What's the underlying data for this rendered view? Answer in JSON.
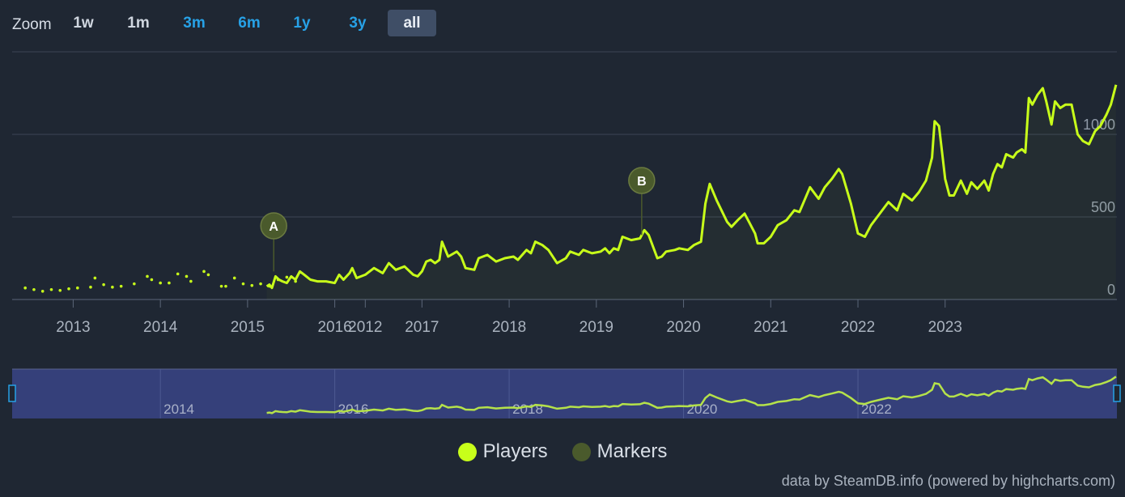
{
  "zoom": {
    "label": "Zoom",
    "buttons": [
      "1w",
      "1m",
      "3m",
      "6m",
      "1y",
      "3y",
      "all"
    ],
    "active": "all"
  },
  "legend": [
    {
      "label": "Players",
      "color": "#c8ff1a"
    },
    {
      "label": "Markers",
      "color": "#4a5a2c"
    }
  ],
  "credits": "data by SteamDB.info (powered by highcharts.com)",
  "chart_data": {
    "type": "line",
    "ylim": [
      0,
      1500
    ],
    "yticks": [
      0,
      500,
      1000
    ],
    "xtick_labels": [
      "2013",
      "2014",
      "2015",
      "2016",
      "2012",
      "2017",
      "2018",
      "2019",
      "2020",
      "2021",
      "2022",
      "2023"
    ],
    "navigator_labels": [
      "2014",
      "2016",
      "2018",
      "2020",
      "2022"
    ],
    "series": [
      {
        "name": "Players",
        "color": "#c8ff1a",
        "sparse": [
          [
            2012.45,
            70
          ],
          [
            2012.55,
            60
          ],
          [
            2012.65,
            50
          ],
          [
            2012.75,
            60
          ],
          [
            2012.85,
            55
          ],
          [
            2012.95,
            65
          ],
          [
            2013.05,
            70
          ],
          [
            2013.2,
            75
          ],
          [
            2013.25,
            130
          ],
          [
            2013.35,
            90
          ],
          [
            2013.45,
            75
          ],
          [
            2013.55,
            80
          ],
          [
            2013.7,
            95
          ],
          [
            2013.85,
            140
          ],
          [
            2013.9,
            120
          ],
          [
            2014.0,
            100
          ],
          [
            2014.1,
            100
          ],
          [
            2014.2,
            155
          ],
          [
            2014.3,
            140
          ],
          [
            2014.35,
            110
          ],
          [
            2014.5,
            170
          ],
          [
            2014.55,
            150
          ],
          [
            2014.7,
            80
          ],
          [
            2014.75,
            80
          ],
          [
            2014.85,
            130
          ],
          [
            2014.95,
            95
          ],
          [
            2015.05,
            85
          ],
          [
            2015.15,
            95
          ],
          [
            2015.25,
            80
          ],
          [
            2015.35,
            120
          ],
          [
            2015.45,
            135
          ],
          [
            2015.55,
            110
          ]
        ],
        "points": [
          [
            2015.22,
            80
          ],
          [
            2015.25,
            90
          ],
          [
            2015.28,
            70
          ],
          [
            2015.32,
            140
          ],
          [
            2015.36,
            120
          ],
          [
            2015.4,
            110
          ],
          [
            2015.45,
            100
          ],
          [
            2015.5,
            140
          ],
          [
            2015.55,
            120
          ],
          [
            2015.6,
            170
          ],
          [
            2015.65,
            150
          ],
          [
            2015.72,
            120
          ],
          [
            2015.8,
            110
          ],
          [
            2015.9,
            110
          ],
          [
            2016.0,
            100
          ],
          [
            2016.05,
            150
          ],
          [
            2016.1,
            120
          ],
          [
            2016.17,
            160
          ],
          [
            2016.2,
            190
          ],
          [
            2016.25,
            130
          ],
          [
            2016.35,
            150
          ],
          [
            2016.45,
            190
          ],
          [
            2016.55,
            160
          ],
          [
            2016.62,
            220
          ],
          [
            2016.7,
            180
          ],
          [
            2016.8,
            200
          ],
          [
            2016.9,
            150
          ],
          [
            2016.95,
            140
          ],
          [
            2017.0,
            170
          ],
          [
            2017.05,
            230
          ],
          [
            2017.1,
            240
          ],
          [
            2017.15,
            220
          ],
          [
            2017.2,
            240
          ],
          [
            2017.23,
            350
          ],
          [
            2017.3,
            260
          ],
          [
            2017.4,
            290
          ],
          [
            2017.45,
            260
          ],
          [
            2017.5,
            190
          ],
          [
            2017.6,
            180
          ],
          [
            2017.65,
            250
          ],
          [
            2017.75,
            270
          ],
          [
            2017.85,
            230
          ],
          [
            2017.95,
            250
          ],
          [
            2018.05,
            260
          ],
          [
            2018.1,
            240
          ],
          [
            2018.2,
            300
          ],
          [
            2018.25,
            280
          ],
          [
            2018.3,
            350
          ],
          [
            2018.38,
            330
          ],
          [
            2018.45,
            300
          ],
          [
            2018.55,
            220
          ],
          [
            2018.65,
            250
          ],
          [
            2018.7,
            290
          ],
          [
            2018.8,
            270
          ],
          [
            2018.85,
            300
          ],
          [
            2018.95,
            280
          ],
          [
            2019.05,
            290
          ],
          [
            2019.1,
            310
          ],
          [
            2019.15,
            280
          ],
          [
            2019.2,
            310
          ],
          [
            2019.25,
            300
          ],
          [
            2019.3,
            380
          ],
          [
            2019.4,
            360
          ],
          [
            2019.5,
            370
          ],
          [
            2019.55,
            420
          ],
          [
            2019.6,
            390
          ],
          [
            2019.7,
            250
          ],
          [
            2019.75,
            260
          ],
          [
            2019.8,
            290
          ],
          [
            2019.9,
            300
          ],
          [
            2019.95,
            310
          ],
          [
            2020.05,
            300
          ],
          [
            2020.12,
            330
          ],
          [
            2020.2,
            350
          ],
          [
            2020.25,
            580
          ],
          [
            2020.3,
            700
          ],
          [
            2020.38,
            600
          ],
          [
            2020.5,
            470
          ],
          [
            2020.55,
            440
          ],
          [
            2020.62,
            480
          ],
          [
            2020.7,
            520
          ],
          [
            2020.75,
            470
          ],
          [
            2020.82,
            400
          ],
          [
            2020.85,
            340
          ],
          [
            2020.92,
            340
          ],
          [
            2021.0,
            380
          ],
          [
            2021.08,
            450
          ],
          [
            2021.18,
            480
          ],
          [
            2021.27,
            540
          ],
          [
            2021.33,
            530
          ],
          [
            2021.45,
            680
          ],
          [
            2021.55,
            610
          ],
          [
            2021.62,
            680
          ],
          [
            2021.7,
            730
          ],
          [
            2021.78,
            790
          ],
          [
            2021.82,
            760
          ],
          [
            2021.92,
            580
          ],
          [
            2022.0,
            400
          ],
          [
            2022.08,
            380
          ],
          [
            2022.15,
            450
          ],
          [
            2022.25,
            520
          ],
          [
            2022.35,
            590
          ],
          [
            2022.45,
            540
          ],
          [
            2022.52,
            640
          ],
          [
            2022.62,
            600
          ],
          [
            2022.7,
            650
          ],
          [
            2022.78,
            720
          ],
          [
            2022.85,
            860
          ],
          [
            2022.88,
            1080
          ],
          [
            2022.93,
            1050
          ],
          [
            2022.97,
            870
          ],
          [
            2023.0,
            730
          ],
          [
            2023.05,
            630
          ],
          [
            2023.1,
            630
          ],
          [
            2023.18,
            720
          ],
          [
            2023.25,
            640
          ],
          [
            2023.3,
            710
          ],
          [
            2023.37,
            670
          ],
          [
            2023.45,
            720
          ],
          [
            2023.5,
            660
          ],
          [
            2023.55,
            760
          ],
          [
            2023.6,
            820
          ],
          [
            2023.65,
            800
          ],
          [
            2023.7,
            880
          ],
          [
            2023.78,
            860
          ],
          [
            2023.82,
            890
          ],
          [
            2023.88,
            910
          ],
          [
            2023.92,
            890
          ],
          [
            2023.96,
            1220
          ],
          [
            2024.0,
            1180
          ],
          [
            2024.06,
            1240
          ],
          [
            2024.12,
            1280
          ],
          [
            2024.16,
            1200
          ],
          [
            2024.22,
            1060
          ],
          [
            2024.26,
            1200
          ],
          [
            2024.32,
            1160
          ],
          [
            2024.38,
            1180
          ],
          [
            2024.45,
            1180
          ],
          [
            2024.52,
            1000
          ],
          [
            2024.58,
            960
          ],
          [
            2024.65,
            940
          ],
          [
            2024.72,
            1020
          ],
          [
            2024.78,
            1050
          ],
          [
            2024.85,
            1120
          ],
          [
            2024.9,
            1180
          ],
          [
            2024.96,
            1300
          ]
        ]
      }
    ],
    "markers": [
      {
        "label": "A",
        "x": 2015.3,
        "y": 170
      },
      {
        "label": "B",
        "x": 2019.52,
        "y": 390
      }
    ]
  }
}
